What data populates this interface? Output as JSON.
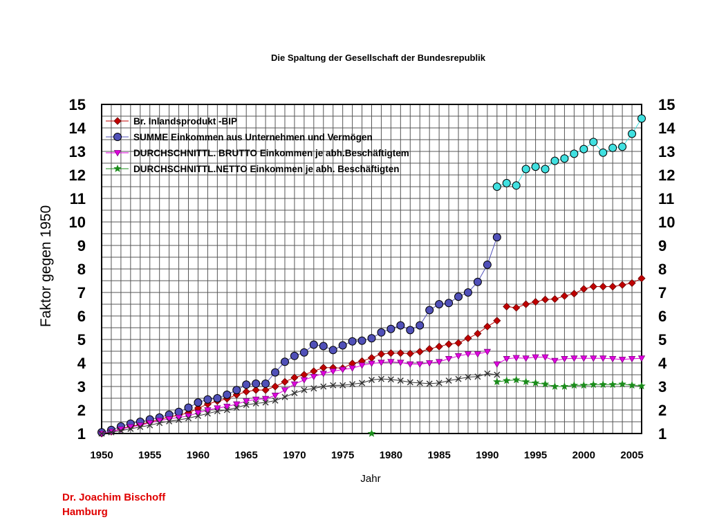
{
  "chart_data": {
    "type": "line",
    "title": "Die Spaltung der Gesellschaft der Bundesrepublik",
    "xlabel": "Jahr",
    "ylabel": "Faktor gegen 1950",
    "xlim": [
      1950,
      2006
    ],
    "ylim": [
      1,
      15
    ],
    "x_ticks": [
      1950,
      1955,
      1960,
      1965,
      1970,
      1975,
      1980,
      1985,
      1990,
      1995,
      2000,
      2005
    ],
    "y_ticks": [
      1,
      2,
      3,
      4,
      5,
      6,
      7,
      8,
      9,
      10,
      11,
      12,
      13,
      14,
      15
    ],
    "grid": true,
    "legend_position": "top-left",
    "series": [
      {
        "name": "Br. Inlandsprodukt -BIP",
        "color": "#c00000",
        "marker": "diamond",
        "segments": [
          {
            "x": [
              1950,
              1951,
              1952,
              1953,
              1954,
              1955,
              1956,
              1957,
              1958,
              1959,
              1960,
              1961,
              1962,
              1963,
              1964,
              1965,
              1966,
              1967,
              1968,
              1969,
              1970,
              1971,
              1972,
              1973,
              1974,
              1975,
              1976,
              1977,
              1978,
              1979,
              1980,
              1981,
              1982,
              1983,
              1984,
              1985,
              1986,
              1987,
              1988,
              1989,
              1990,
              1991
            ],
            "y": [
              1.0,
              1.08,
              1.2,
              1.3,
              1.38,
              1.48,
              1.6,
              1.7,
              1.78,
              1.88,
              2.08,
              2.25,
              2.38,
              2.48,
              2.65,
              2.78,
              2.85,
              2.85,
              3.0,
              3.2,
              3.38,
              3.5,
              3.65,
              3.8,
              3.8,
              3.78,
              3.98,
              4.08,
              4.22,
              4.38,
              4.42,
              4.42,
              4.4,
              4.48,
              4.6,
              4.7,
              4.8,
              4.85,
              5.05,
              5.25,
              5.55,
              5.8
            ]
          },
          {
            "x": [
              1992,
              1993,
              1994,
              1995,
              1996,
              1997,
              1998,
              1999,
              2000,
              2001,
              2002,
              2003,
              2004,
              2005,
              2006
            ],
            "y": [
              6.4,
              6.35,
              6.5,
              6.6,
              6.7,
              6.72,
              6.85,
              6.95,
              7.15,
              7.25,
              7.25,
              7.25,
              7.32,
              7.4,
              7.6
            ]
          }
        ]
      },
      {
        "name": "SUMME Einkommen aus Unternehmen und Vermögen",
        "color": "#5050b8",
        "marker": "circle",
        "segments": [
          {
            "x": [
              1950,
              1951,
              1952,
              1953,
              1954,
              1955,
              1956,
              1957,
              1958,
              1959,
              1960,
              1961,
              1962,
              1963,
              1964,
              1965,
              1966,
              1967,
              1968,
              1969,
              1970,
              1971,
              1972,
              1973,
              1974,
              1975,
              1976,
              1977,
              1978,
              1979,
              1980,
              1981,
              1982,
              1983,
              1984,
              1985,
              1986,
              1987,
              1988,
              1989,
              1990,
              1991
            ],
            "y": [
              1.05,
              1.15,
              1.3,
              1.42,
              1.5,
              1.6,
              1.68,
              1.8,
              1.92,
              2.1,
              2.32,
              2.45,
              2.5,
              2.65,
              2.85,
              3.08,
              3.12,
              3.12,
              3.6,
              4.05,
              4.3,
              4.45,
              4.78,
              4.72,
              4.55,
              4.75,
              4.92,
              4.95,
              5.05,
              5.3,
              5.45,
              5.6,
              5.4,
              5.6,
              6.25,
              6.5,
              6.55,
              6.82,
              7.0,
              7.45,
              8.18,
              9.35
            ]
          }
        ]
      },
      {
        "name": "SUMME Einkommen aus Unternehmen und Vermögen (ab 1991)",
        "color": "#40e0e0",
        "marker": "circle",
        "legend": false,
        "segments": [
          {
            "x": [
              1991,
              1992,
              1993,
              1994,
              1995,
              1996,
              1997,
              1998,
              1999,
              2000,
              2001,
              2002,
              2003,
              2004,
              2005,
              2006
            ],
            "y": [
              11.5,
              11.65,
              11.55,
              12.25,
              12.35,
              12.25,
              12.6,
              12.7,
              12.9,
              13.1,
              13.4,
              12.95,
              13.15,
              13.2,
              13.75,
              14.4
            ]
          }
        ]
      },
      {
        "name": "DURCHSCHNITTL. BRUTTO Einkommen je abh.Beschäftigtem",
        "color": "#e000e0",
        "marker": "triangle-down",
        "segments": [
          {
            "x": [
              1950,
              1951,
              1952,
              1953,
              1954,
              1955,
              1956,
              1957,
              1958,
              1959,
              1960,
              1961,
              1962,
              1963,
              1964,
              1965,
              1966,
              1967,
              1968,
              1969,
              1970,
              1971,
              1972,
              1973,
              1974,
              1975,
              1976,
              1977,
              1978,
              1979,
              1980,
              1981,
              1982,
              1983,
              1984,
              1985,
              1986,
              1987,
              1988,
              1989,
              1990
            ],
            "y": [
              1.0,
              1.08,
              1.18,
              1.28,
              1.35,
              1.45,
              1.55,
              1.62,
              1.68,
              1.75,
              1.88,
              2.0,
              2.08,
              2.15,
              2.25,
              2.38,
              2.45,
              2.48,
              2.62,
              2.85,
              3.1,
              3.28,
              3.42,
              3.55,
              3.65,
              3.72,
              3.78,
              3.9,
              3.98,
              4.02,
              4.05,
              4.02,
              3.95,
              3.95,
              4.0,
              4.05,
              4.18,
              4.3,
              4.38,
              4.38,
              4.48
            ]
          },
          {
            "x": [
              1991,
              1992,
              1993,
              1994,
              1995,
              1996,
              1997,
              1998,
              1999,
              2000,
              2001,
              2002,
              2003,
              2004,
              2005,
              2006
            ],
            "y": [
              3.95,
              4.18,
              4.22,
              4.2,
              4.25,
              4.25,
              4.1,
              4.18,
              4.2,
              4.2,
              4.2,
              4.2,
              4.18,
              4.15,
              4.18,
              4.2
            ]
          }
        ]
      },
      {
        "name": "DURCHSCHNITTL.NETTO Einkommen je abh. Beschäftigten",
        "color": "#1a8c1a",
        "marker": "star",
        "segments": [
          {
            "x": [
              1978
            ],
            "y": [
              1.0
            ]
          },
          {
            "x": [
              1991,
              1992,
              1993,
              1994,
              1995,
              1996,
              1997,
              1998,
              1999,
              2000,
              2001,
              2002,
              2003,
              2004,
              2005,
              2006
            ],
            "y": [
              3.2,
              3.25,
              3.28,
              3.2,
              3.15,
              3.1,
              3.0,
              3.0,
              3.05,
              3.05,
              3.08,
              3.08,
              3.08,
              3.1,
              3.05,
              3.02
            ]
          }
        ]
      },
      {
        "name": "DURCHSCHNITTL.NETTO Einkommen je abh. Beschäftigten (bis 1991)",
        "color": "#303030",
        "marker": "x",
        "legend": false,
        "segments": [
          {
            "x": [
              1950,
              1951,
              1952,
              1953,
              1954,
              1955,
              1956,
              1957,
              1958,
              1959,
              1960,
              1961,
              1962,
              1963,
              1964,
              1965,
              1966,
              1967,
              1968,
              1969,
              1970,
              1971,
              1972,
              1973,
              1974,
              1975,
              1976,
              1977,
              1978,
              1979,
              1980,
              1981,
              1982,
              1983,
              1984,
              1985,
              1986,
              1987,
              1988,
              1989,
              1990,
              1991
            ],
            "y": [
              1.0,
              1.05,
              1.12,
              1.2,
              1.28,
              1.35,
              1.45,
              1.52,
              1.58,
              1.65,
              1.75,
              1.85,
              1.95,
              2.0,
              2.1,
              2.22,
              2.28,
              2.32,
              2.4,
              2.55,
              2.72,
              2.85,
              2.92,
              3.0,
              3.05,
              3.05,
              3.1,
              3.15,
              3.28,
              3.32,
              3.3,
              3.25,
              3.18,
              3.15,
              3.12,
              3.15,
              3.25,
              3.32,
              3.4,
              3.42,
              3.55,
              3.5
            ]
          }
        ]
      }
    ]
  },
  "author": {
    "line1": "Dr. Joachim Bischoff",
    "line2": "Hamburg"
  }
}
